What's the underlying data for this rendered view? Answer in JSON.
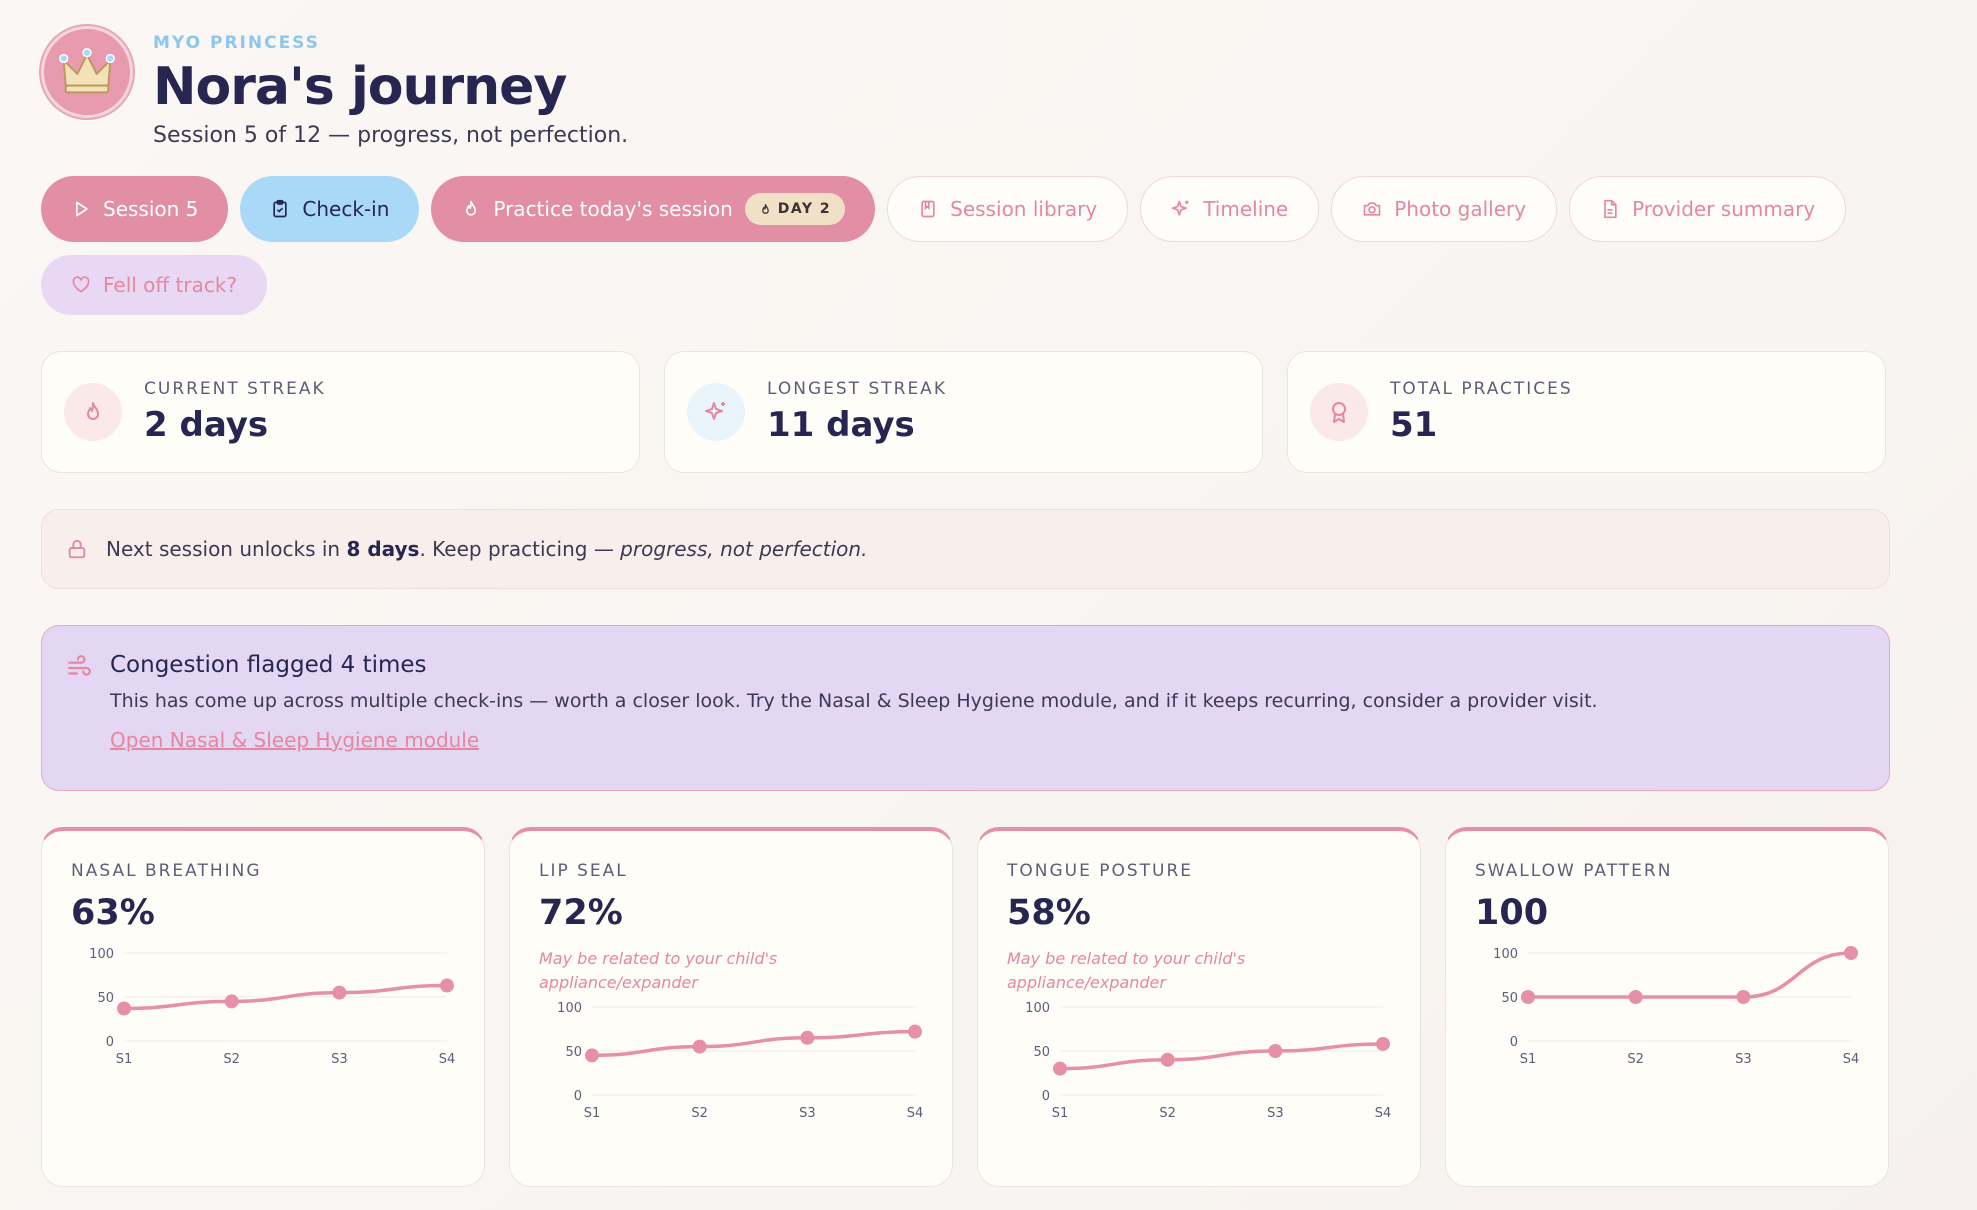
{
  "header": {
    "eyebrow": "MYO PRINCESS",
    "title": "Nora's journey",
    "subtitle": "Session 5 of 12 — progress, not perfection.",
    "avatar_icon": "crown-icon"
  },
  "nav": {
    "session": "Session 5",
    "checkin": "Check-in",
    "practice": "Practice today's session",
    "practice_badge": "DAY 2",
    "library": "Session library",
    "timeline": "Timeline",
    "gallery": "Photo gallery",
    "provider": "Provider summary",
    "fell_off": "Fell off track?"
  },
  "stats": [
    {
      "label": "CURRENT STREAK",
      "value": "2 days",
      "icon": "flame-icon"
    },
    {
      "label": "LONGEST STREAK",
      "value": "11 days",
      "icon": "sparkle-icon"
    },
    {
      "label": "TOTAL PRACTICES",
      "value": "51",
      "icon": "award-icon"
    }
  ],
  "unlock": {
    "prefix": "Next session unlocks in ",
    "days": "8 days",
    "middle": ". Keep practicing — ",
    "emphasis": "progress, not perfection."
  },
  "alert": {
    "title": "Congestion flagged 4 times",
    "text": "This has come up across multiple check-ins — worth a closer look. Try the Nasal & Sleep Hygiene module, and if it keeps recurring, consider a provider visit.",
    "link": "Open Nasal & Sleep Hygiene module"
  },
  "colors": {
    "accent_pink": "#e28ea5",
    "accent_blue": "#a9d9f7",
    "lilac": "#e4d7f3",
    "line": "#e590a8",
    "navy": "#262650"
  },
  "metrics": [
    {
      "label": "NASAL BREATHING",
      "value": "63%",
      "note": ""
    },
    {
      "label": "LIP SEAL",
      "value": "72%",
      "note": "May be related to your child's appliance/expander"
    },
    {
      "label": "TONGUE POSTURE",
      "value": "58%",
      "note": "May be related to your child's appliance/expander"
    },
    {
      "label": "SWALLOW PATTERN",
      "value": "100",
      "note": ""
    }
  ],
  "chart_data": [
    {
      "type": "line",
      "categories": [
        "S1",
        "S2",
        "S3",
        "S4"
      ],
      "values": [
        37,
        45,
        55,
        63
      ],
      "ylim": [
        0,
        100
      ],
      "yticks": [
        0,
        50,
        100
      ],
      "grid": true
    },
    {
      "type": "line",
      "categories": [
        "S1",
        "S2",
        "S3",
        "S4"
      ],
      "values": [
        45,
        55,
        65,
        72
      ],
      "ylim": [
        0,
        100
      ],
      "yticks": [
        0,
        50,
        100
      ],
      "grid": true
    },
    {
      "type": "line",
      "categories": [
        "S1",
        "S2",
        "S3",
        "S4"
      ],
      "values": [
        30,
        40,
        50,
        58
      ],
      "ylim": [
        0,
        100
      ],
      "yticks": [
        0,
        50,
        100
      ],
      "grid": true
    },
    {
      "type": "line",
      "categories": [
        "S1",
        "S2",
        "S3",
        "S4"
      ],
      "values": [
        50,
        50,
        50,
        100
      ],
      "ylim": [
        0,
        100
      ],
      "yticks": [
        0,
        50,
        100
      ],
      "grid": true
    }
  ]
}
